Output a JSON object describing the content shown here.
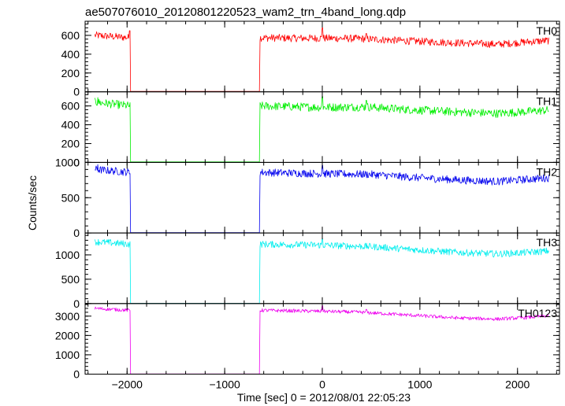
{
  "chart_data": {
    "type": "line",
    "title": "ae507076010_20120801220523_wam2_trn_4band_long.qdp",
    "xlabel": "Time [sec] 0 = 2012/08/01 22:05:23",
    "ylabel": "Counts/sec",
    "xlim": [
      -2430,
      2430
    ],
    "xticks": [
      -2000,
      -1000,
      0,
      1000,
      2000
    ],
    "xticklabels": [
      "−2000",
      "−1000",
      "0",
      "1000",
      "2000"
    ],
    "gap": [
      -1970,
      -640
    ],
    "x_range": [
      -2330,
      2320
    ],
    "grid": false,
    "legend": "none",
    "panels": [
      {
        "name": "TH0",
        "color": "#ff0000",
        "ylim": [
          0,
          750
        ],
        "yticks": [
          0,
          200,
          400,
          600
        ],
        "yticklabels": [
          "0",
          "200",
          "400",
          "600"
        ],
        "gap_value": 5,
        "profile": [
          [
            -2330,
            600
          ],
          [
            -1970,
            575
          ],
          [
            -640,
            575
          ],
          [
            -300,
            570
          ],
          [
            0,
            570
          ],
          [
            400,
            565
          ],
          [
            900,
            540
          ],
          [
            1400,
            520
          ],
          [
            1800,
            505
          ],
          [
            2100,
            530
          ],
          [
            2320,
            545
          ]
        ],
        "noise": 40,
        "spikes": [
          [
            0,
            680
          ],
          [
            450,
            620
          ],
          [
            -1975,
            650
          ]
        ]
      },
      {
        "name": "TH1",
        "color": "#00ee00",
        "ylim": [
          0,
          750
        ],
        "yticks": [
          0,
          200,
          400,
          600
        ],
        "yticklabels": [
          "0",
          "200",
          "400",
          "600"
        ],
        "gap_value": 5,
        "profile": [
          [
            -2330,
            640
          ],
          [
            -1970,
            600
          ],
          [
            -640,
            600
          ],
          [
            0,
            585
          ],
          [
            450,
            590
          ],
          [
            900,
            560
          ],
          [
            1400,
            535
          ],
          [
            1800,
            520
          ],
          [
            2100,
            540
          ],
          [
            2320,
            555
          ]
        ],
        "noise": 45,
        "spikes": [
          [
            0,
            700
          ],
          [
            450,
            660
          ],
          [
            -2300,
            690
          ]
        ]
      },
      {
        "name": "TH2",
        "color": "#0000ee",
        "ylim": [
          0,
          1000
        ],
        "yticks": [
          0,
          500,
          1000
        ],
        "yticklabels": [
          "0",
          "500",
          "1000"
        ],
        "gap_value": 5,
        "profile": [
          [
            -2330,
            900
          ],
          [
            -1970,
            860
          ],
          [
            -640,
            860
          ],
          [
            0,
            840
          ],
          [
            500,
            830
          ],
          [
            900,
            790
          ],
          [
            1400,
            750
          ],
          [
            1800,
            730
          ],
          [
            2100,
            760
          ],
          [
            2320,
            780
          ]
        ],
        "noise": 55,
        "spikes": [
          [
            0,
            960
          ],
          [
            -2300,
            970
          ]
        ]
      },
      {
        "name": "TH3",
        "color": "#00eeee",
        "ylim": [
          0,
          1450
        ],
        "yticks": [
          0,
          500,
          1000
        ],
        "yticklabels": [
          "0",
          "500",
          "1000"
        ],
        "gap_value": 5,
        "profile": [
          [
            -2330,
            1270
          ],
          [
            -1970,
            1220
          ],
          [
            -640,
            1220
          ],
          [
            0,
            1200
          ],
          [
            500,
            1170
          ],
          [
            1000,
            1100
          ],
          [
            1400,
            1050
          ],
          [
            1800,
            1020
          ],
          [
            2100,
            1050
          ],
          [
            2320,
            1080
          ]
        ],
        "noise": 70,
        "spikes": [
          [
            0,
            1330
          ]
        ]
      },
      {
        "name": "TH0123",
        "color": "#ee00ee",
        "ylim": [
          0,
          3650
        ],
        "yticks": [
          0,
          1000,
          2000,
          3000
        ],
        "yticklabels": [
          "0",
          "1000",
          "2000",
          "3000"
        ],
        "gap_value": 10,
        "profile": [
          [
            -2330,
            3400
          ],
          [
            -1970,
            3300
          ],
          [
            -640,
            3300
          ],
          [
            0,
            3250
          ],
          [
            400,
            3200
          ],
          [
            900,
            3050
          ],
          [
            1400,
            2900
          ],
          [
            1800,
            2850
          ],
          [
            2100,
            2930
          ],
          [
            2320,
            3020
          ]
        ],
        "noise": 90,
        "spikes": [
          [
            0,
            3550
          ],
          [
            450,
            3350
          ]
        ]
      }
    ]
  }
}
